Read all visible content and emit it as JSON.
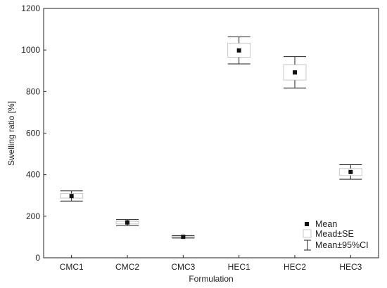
{
  "chart_data": {
    "type": "box",
    "title": "",
    "xlabel": "Formulation",
    "ylabel": "Swelling ratio [%]",
    "ylim": [
      0,
      1200
    ],
    "yticks": [
      0,
      200,
      400,
      600,
      800,
      1000,
      1200
    ],
    "categories": [
      "CMC1",
      "CMC2",
      "CMC3",
      "HEC1",
      "HEC2",
      "HEC3"
    ],
    "series": [
      {
        "name": "Mean",
        "values": [
          297,
          170,
          101,
          998,
          892,
          413
        ]
      },
      {
        "name": "Mead±SE",
        "low": [
          287,
          163,
          98,
          965,
          855,
          396
        ],
        "high": [
          309,
          175,
          104,
          1033,
          930,
          430
        ]
      },
      {
        "name": "Mean±95%CI",
        "low": [
          273,
          155,
          95,
          933,
          817,
          378
        ],
        "high": [
          322,
          184,
          107,
          1063,
          968,
          448
        ]
      }
    ],
    "grid": false,
    "legend": "bottom-right",
    "colors": {
      "box_stroke": "#c8c8c8",
      "whisker": "#222222",
      "marker": "#111111",
      "axis": "#222222"
    }
  }
}
